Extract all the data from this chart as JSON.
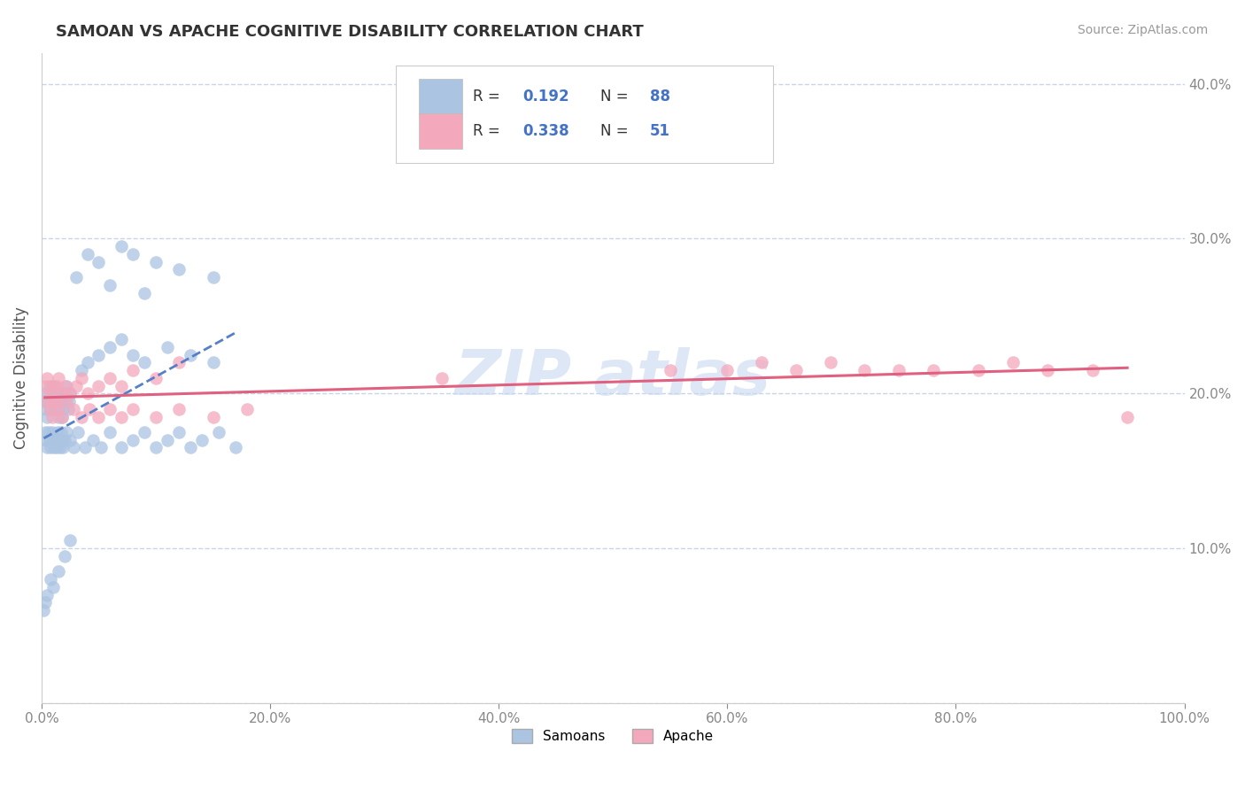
{
  "title": "SAMOAN VS APACHE COGNITIVE DISABILITY CORRELATION CHART",
  "source": "Source: ZipAtlas.com",
  "ylabel": "Cognitive Disability",
  "xlim": [
    0.0,
    1.0
  ],
  "ylim": [
    0.0,
    0.42
  ],
  "xticks": [
    0.0,
    0.2,
    0.4,
    0.6,
    0.8,
    1.0
  ],
  "xtick_labels": [
    "0.0%",
    "20.0%",
    "40.0%",
    "60.0%",
    "80.0%",
    "100.0%"
  ],
  "yticks": [
    0.0,
    0.1,
    0.2,
    0.3,
    0.4
  ],
  "ytick_labels": [
    "",
    "10.0%",
    "20.0%",
    "30.0%",
    "40.0%"
  ],
  "r_samoan": 0.192,
  "n_samoan": 88,
  "r_apache": 0.338,
  "n_apache": 51,
  "samoan_color": "#aac4e2",
  "apache_color": "#f4a8bc",
  "samoan_line_color": "#5580c8",
  "apache_line_color": "#e06080",
  "background_color": "#ffffff",
  "grid_color": "#c8d4e8",
  "watermark_color": "#c8d8f0",
  "samoan_x": [
    0.002,
    0.003,
    0.004,
    0.005,
    0.006,
    0.007,
    0.008,
    0.009,
    0.01,
    0.011,
    0.012,
    0.013,
    0.014,
    0.015,
    0.016,
    0.017,
    0.018,
    0.019,
    0.02,
    0.021,
    0.022,
    0.023,
    0.024,
    0.025,
    0.003,
    0.004,
    0.005,
    0.006,
    0.007,
    0.008,
    0.009,
    0.01,
    0.011,
    0.012,
    0.013,
    0.014,
    0.015,
    0.016,
    0.017,
    0.018,
    0.019,
    0.02,
    0.022,
    0.025,
    0.028,
    0.032,
    0.038,
    0.045,
    0.052,
    0.06,
    0.07,
    0.08,
    0.09,
    0.1,
    0.11,
    0.12,
    0.13,
    0.14,
    0.155,
    0.17,
    0.035,
    0.04,
    0.05,
    0.06,
    0.07,
    0.08,
    0.09,
    0.11,
    0.13,
    0.15,
    0.06,
    0.09,
    0.12,
    0.15,
    0.08,
    0.1,
    0.07,
    0.05,
    0.04,
    0.03,
    0.025,
    0.02,
    0.015,
    0.01,
    0.008,
    0.005,
    0.003,
    0.002
  ],
  "samoan_y": [
    0.195,
    0.2,
    0.19,
    0.185,
    0.195,
    0.205,
    0.19,
    0.2,
    0.195,
    0.205,
    0.19,
    0.2,
    0.195,
    0.185,
    0.195,
    0.2,
    0.185,
    0.19,
    0.195,
    0.2,
    0.205,
    0.19,
    0.195,
    0.2,
    0.175,
    0.17,
    0.165,
    0.175,
    0.17,
    0.165,
    0.175,
    0.17,
    0.165,
    0.17,
    0.165,
    0.175,
    0.17,
    0.165,
    0.175,
    0.17,
    0.165,
    0.17,
    0.175,
    0.17,
    0.165,
    0.175,
    0.165,
    0.17,
    0.165,
    0.175,
    0.165,
    0.17,
    0.175,
    0.165,
    0.17,
    0.175,
    0.165,
    0.17,
    0.175,
    0.165,
    0.215,
    0.22,
    0.225,
    0.23,
    0.235,
    0.225,
    0.22,
    0.23,
    0.225,
    0.22,
    0.27,
    0.265,
    0.28,
    0.275,
    0.29,
    0.285,
    0.295,
    0.285,
    0.29,
    0.275,
    0.105,
    0.095,
    0.085,
    0.075,
    0.08,
    0.07,
    0.065,
    0.06
  ],
  "apache_x": [
    0.003,
    0.005,
    0.007,
    0.009,
    0.011,
    0.013,
    0.015,
    0.018,
    0.021,
    0.025,
    0.03,
    0.035,
    0.04,
    0.05,
    0.06,
    0.07,
    0.08,
    0.1,
    0.12,
    0.005,
    0.007,
    0.009,
    0.012,
    0.015,
    0.018,
    0.022,
    0.028,
    0.035,
    0.042,
    0.05,
    0.06,
    0.07,
    0.08,
    0.1,
    0.12,
    0.15,
    0.18,
    0.35,
    0.55,
    0.6,
    0.63,
    0.66,
    0.69,
    0.72,
    0.75,
    0.78,
    0.82,
    0.85,
    0.88,
    0.92,
    0.95
  ],
  "apache_y": [
    0.205,
    0.21,
    0.2,
    0.205,
    0.195,
    0.205,
    0.21,
    0.2,
    0.205,
    0.2,
    0.205,
    0.21,
    0.2,
    0.205,
    0.21,
    0.205,
    0.215,
    0.21,
    0.22,
    0.195,
    0.19,
    0.185,
    0.195,
    0.19,
    0.185,
    0.195,
    0.19,
    0.185,
    0.19,
    0.185,
    0.19,
    0.185,
    0.19,
    0.185,
    0.19,
    0.185,
    0.19,
    0.21,
    0.215,
    0.215,
    0.22,
    0.215,
    0.22,
    0.215,
    0.215,
    0.215,
    0.215,
    0.22,
    0.215,
    0.215,
    0.185
  ]
}
